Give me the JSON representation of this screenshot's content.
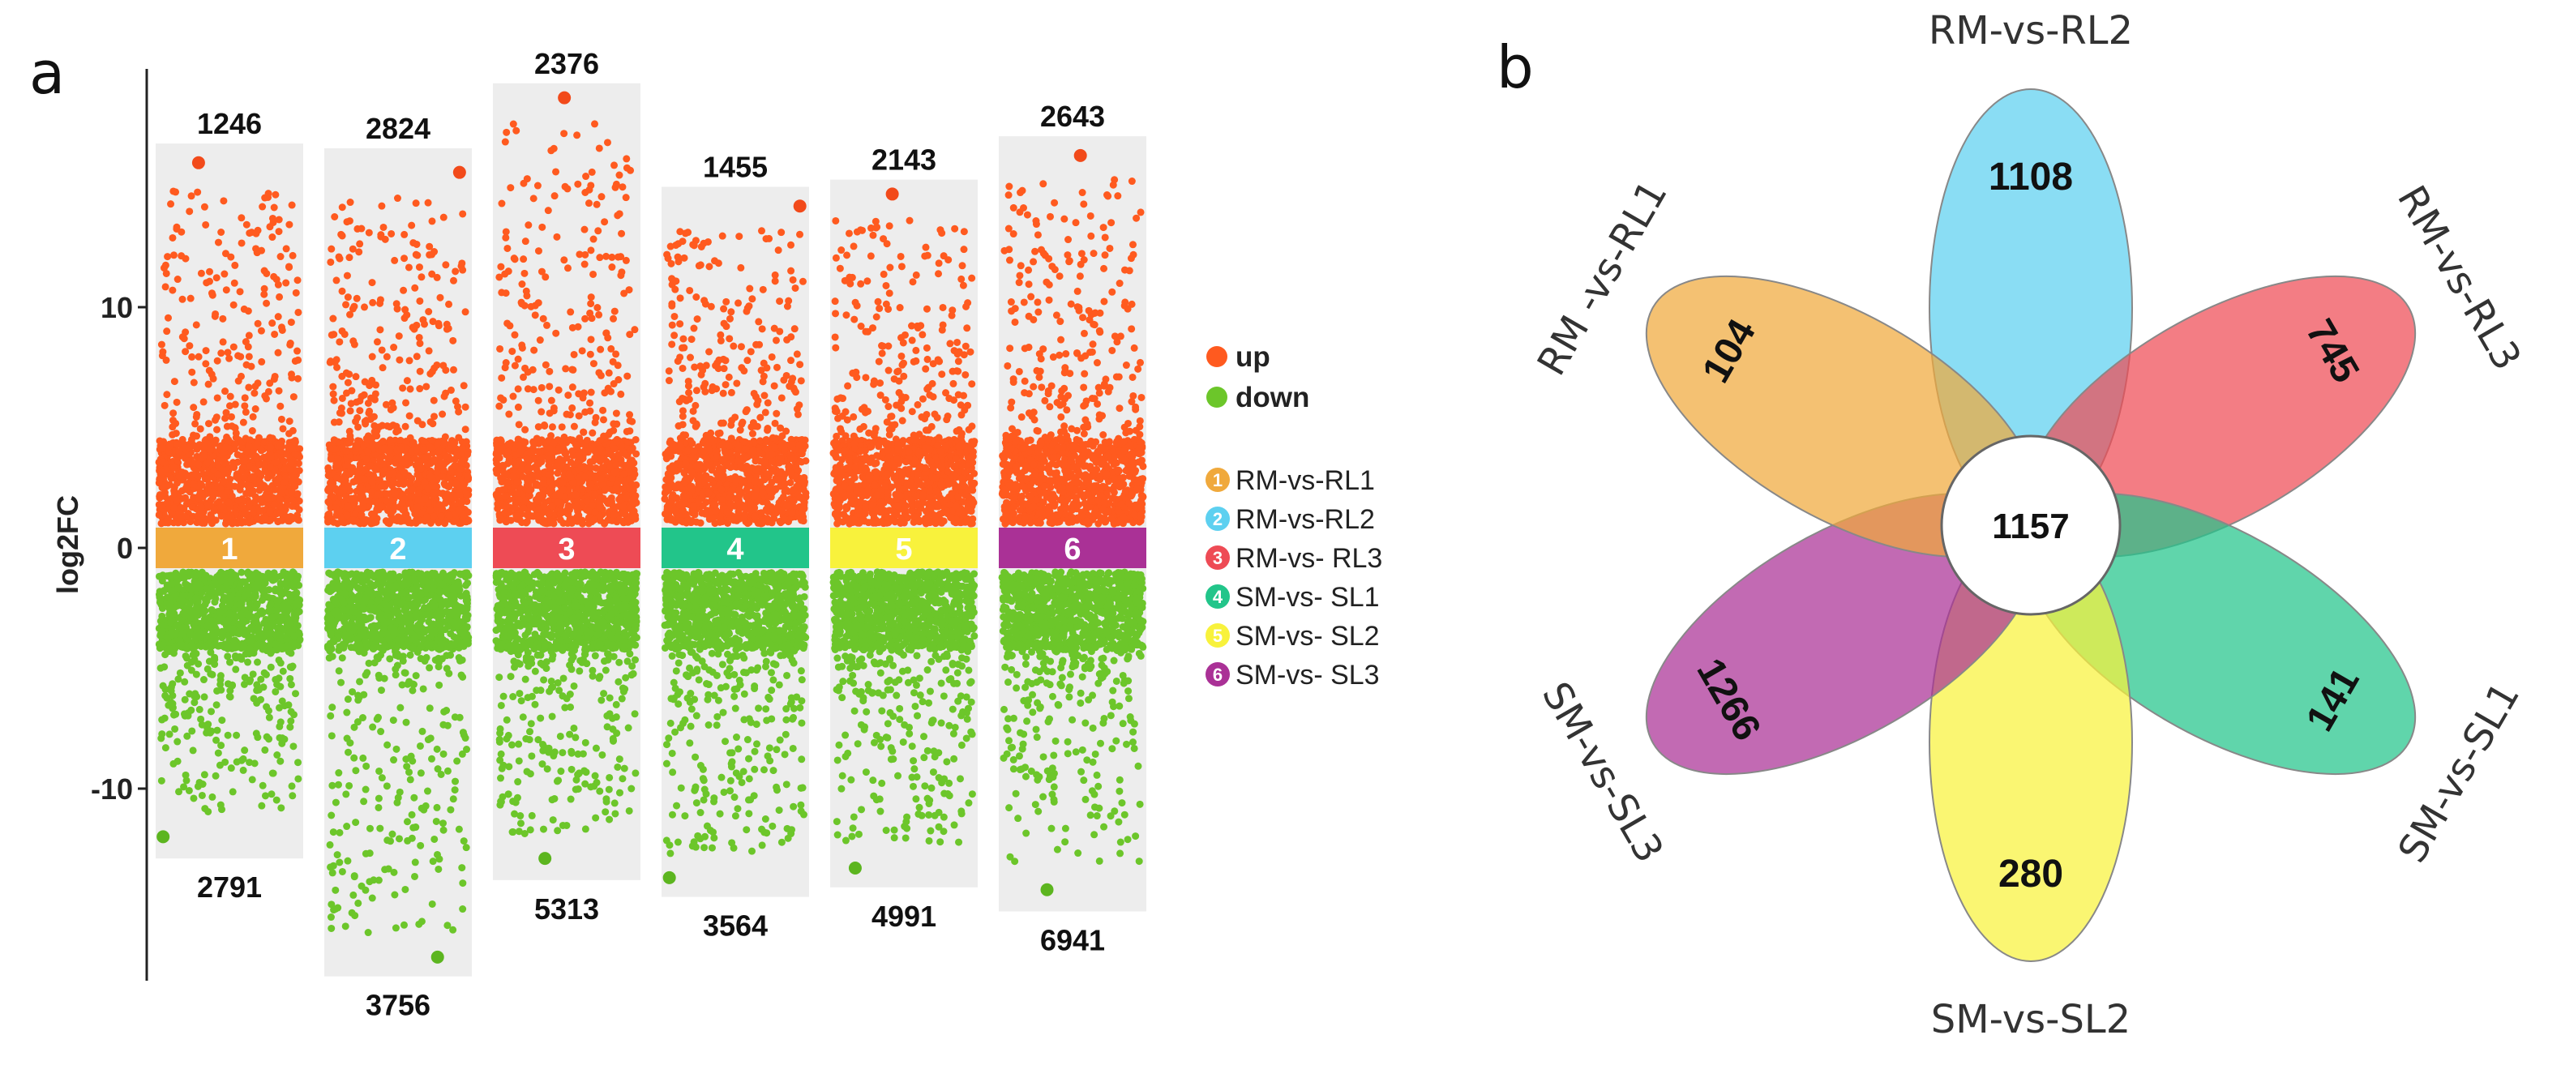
{
  "panels": {
    "a": "a",
    "b": "b"
  },
  "chart_data": [
    {
      "type": "scatter",
      "title": "",
      "ylabel": "log2FC",
      "xlabel": "",
      "ylim": [
        -18,
        20
      ],
      "yticks": [
        10,
        0,
        -10
      ],
      "ytick_labels": [
        "10",
        "0",
        "-10"
      ],
      "legend": {
        "position": "right",
        "markers": [
          {
            "label": "up",
            "color": "#FF5A1F"
          },
          {
            "label": "down",
            "color": "#6CC62A"
          }
        ],
        "groups": [
          {
            "badge": "1",
            "label": "RM-vs-RL1",
            "color": "#F0A93C"
          },
          {
            "badge": "2",
            "label": "RM-vs-RL2",
            "color": "#5DD0F0"
          },
          {
            "badge": "3",
            "label": "RM-vs- RL3",
            "color": "#EE4B55"
          },
          {
            "badge": "4",
            "label": "SM-vs- SL1",
            "color": "#22C58A"
          },
          {
            "badge": "5",
            "label": "SM-vs- SL2",
            "color": "#F8F23C"
          },
          {
            "badge": "6",
            "label": "SM-vs- SL3",
            "color": "#AA3196"
          }
        ]
      },
      "groups": [
        {
          "id": "1",
          "name": "RM-vs-RL1",
          "color": "#F0A93C",
          "up_count": "1246",
          "down_count": "2791",
          "max_up": 16.0,
          "max_down": -12.0,
          "up_range": [
            0,
            16.8
          ],
          "down_range": [
            -12.9,
            0
          ]
        },
        {
          "id": "2",
          "name": "RM-vs-RL2",
          "color": "#5DD0F0",
          "up_count": "2824",
          "down_count": "3756",
          "max_up": 15.6,
          "max_down": -17.0,
          "up_range": [
            0,
            16.6
          ],
          "down_range": [
            -17.8,
            0
          ]
        },
        {
          "id": "3",
          "name": "RM-vs-RL3",
          "color": "#EE4B55",
          "up_count": "2376",
          "down_count": "5313",
          "max_up": 18.7,
          "max_down": -12.9,
          "up_range": [
            0,
            19.3
          ],
          "down_range": [
            -13.8,
            0
          ]
        },
        {
          "id": "4",
          "name": "SM-vs-SL1",
          "color": "#22C58A",
          "up_count": "1455",
          "down_count": "3564",
          "max_up": 14.2,
          "max_down": -13.7,
          "up_range": [
            0,
            15.0
          ],
          "down_range": [
            -14.5,
            0
          ]
        },
        {
          "id": "5",
          "name": "SM-vs-SL2",
          "color": "#F8F23C",
          "up_count": "2143",
          "down_count": "4991",
          "max_up": 14.7,
          "max_down": -13.3,
          "up_range": [
            0,
            15.3
          ],
          "down_range": [
            -14.1,
            0
          ]
        },
        {
          "id": "6",
          "name": "SM-vs-SL3",
          "color": "#AA3196",
          "up_count": "2643",
          "down_count": "6941",
          "max_up": 16.3,
          "max_down": -14.2,
          "up_range": [
            0,
            17.1
          ],
          "down_range": [
            -15.1,
            0
          ]
        }
      ]
    },
    {
      "type": "venn",
      "sets": [
        {
          "name": "RM-vs-RL2",
          "unique": "1108",
          "color": "#5DD0F0",
          "angle": 0
        },
        {
          "name": "RM-vs-RL3",
          "unique": "745",
          "color": "#EE4B55",
          "angle": 60
        },
        {
          "name": "SM-vs-SL1",
          "unique": "141",
          "color": "#22C58A",
          "angle": 120
        },
        {
          "name": "SM-vs-SL2",
          "unique": "280",
          "color": "#F8F23C",
          "angle": 180
        },
        {
          "name": "SM-vs-SL3",
          "unique": "1266",
          "color": "#AA3196",
          "angle": 240
        },
        {
          "name": "RM -vs-RL1",
          "unique": "104",
          "color": "#F0A93C",
          "angle": 300
        }
      ],
      "shared": "1157"
    }
  ]
}
